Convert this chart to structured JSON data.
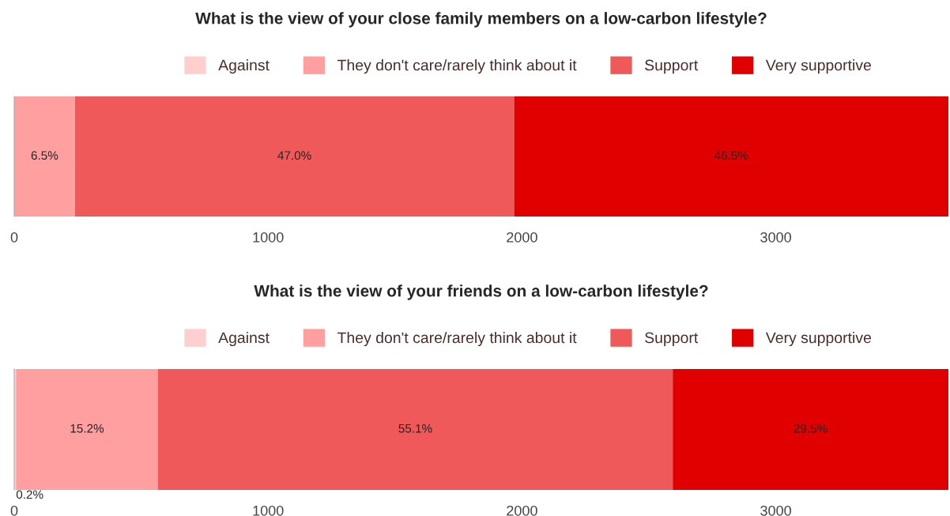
{
  "chart_data": [
    {
      "type": "bar",
      "orientation": "horizontal",
      "stacked": true,
      "title": "What is the view of your close family members on a low-carbon lifestyle?",
      "categories": [
        null
      ],
      "xlim": [
        0,
        3680
      ],
      "xticks": [
        0,
        1000,
        2000,
        3000
      ],
      "legend": "top",
      "tick_labels": "x",
      "series": [
        {
          "name": "Against",
          "color": "#ffcfcf",
          "values": [
            0
          ]
        },
        {
          "name": "They don't care/rarely think about it",
          "color": "#ff9f9f",
          "values": [
            239
          ]
        },
        {
          "name": "Support",
          "color": "#f05959",
          "values": [
            1730
          ]
        },
        {
          "name": "Very supportive",
          "color": "#e00000",
          "values": [
            1711
          ]
        }
      ],
      "annotations": [
        "6.5%",
        "47.0%",
        "46.5%"
      ]
    },
    {
      "type": "bar",
      "orientation": "horizontal",
      "stacked": true,
      "title": "What is the view of your friends on a low-carbon lifestyle?",
      "categories": [
        null
      ],
      "xlim": [
        0,
        3680
      ],
      "xticks": [
        0,
        1000,
        2000,
        3000
      ],
      "legend": "top",
      "tick_labels": "x",
      "series": [
        {
          "name": "Against",
          "color": "#ffcfcf",
          "values": [
            7
          ]
        },
        {
          "name": "They don't care/rarely think about it",
          "color": "#ff9f9f",
          "values": [
            559
          ]
        },
        {
          "name": "Support",
          "color": "#f05959",
          "values": [
            2028
          ]
        },
        {
          "name": "Very supportive",
          "color": "#e00000",
          "values": [
            1086
          ]
        }
      ],
      "annotations": [
        "0.2%",
        "15.2%",
        "55.1%",
        "29.5%"
      ]
    }
  ]
}
